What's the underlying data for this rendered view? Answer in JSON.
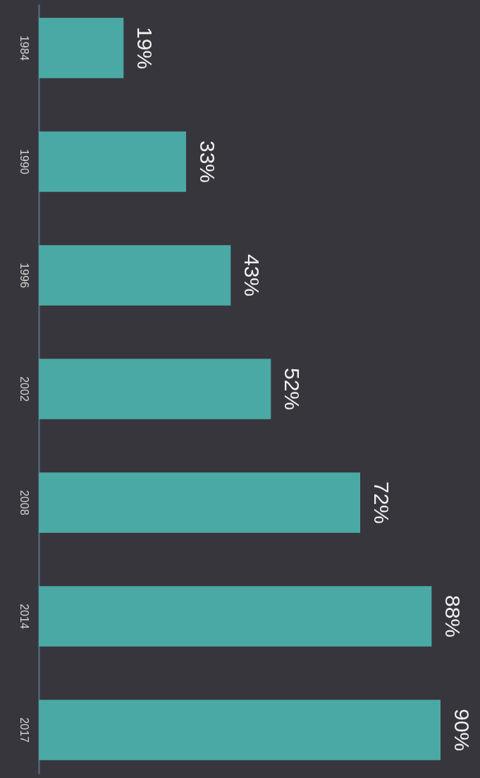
{
  "chart_data": {
    "type": "bar",
    "orientation": "horizontal",
    "categories": [
      "1984",
      "1990",
      "1996",
      "2002",
      "2008",
      "2014",
      "2017"
    ],
    "values": [
      19,
      33,
      43,
      52,
      72,
      88,
      90
    ],
    "value_labels": [
      "19%",
      "33%",
      "43%",
      "52%",
      "72%",
      "88%",
      "90%"
    ],
    "color": "#4aa9a5",
    "grid": false
  }
}
